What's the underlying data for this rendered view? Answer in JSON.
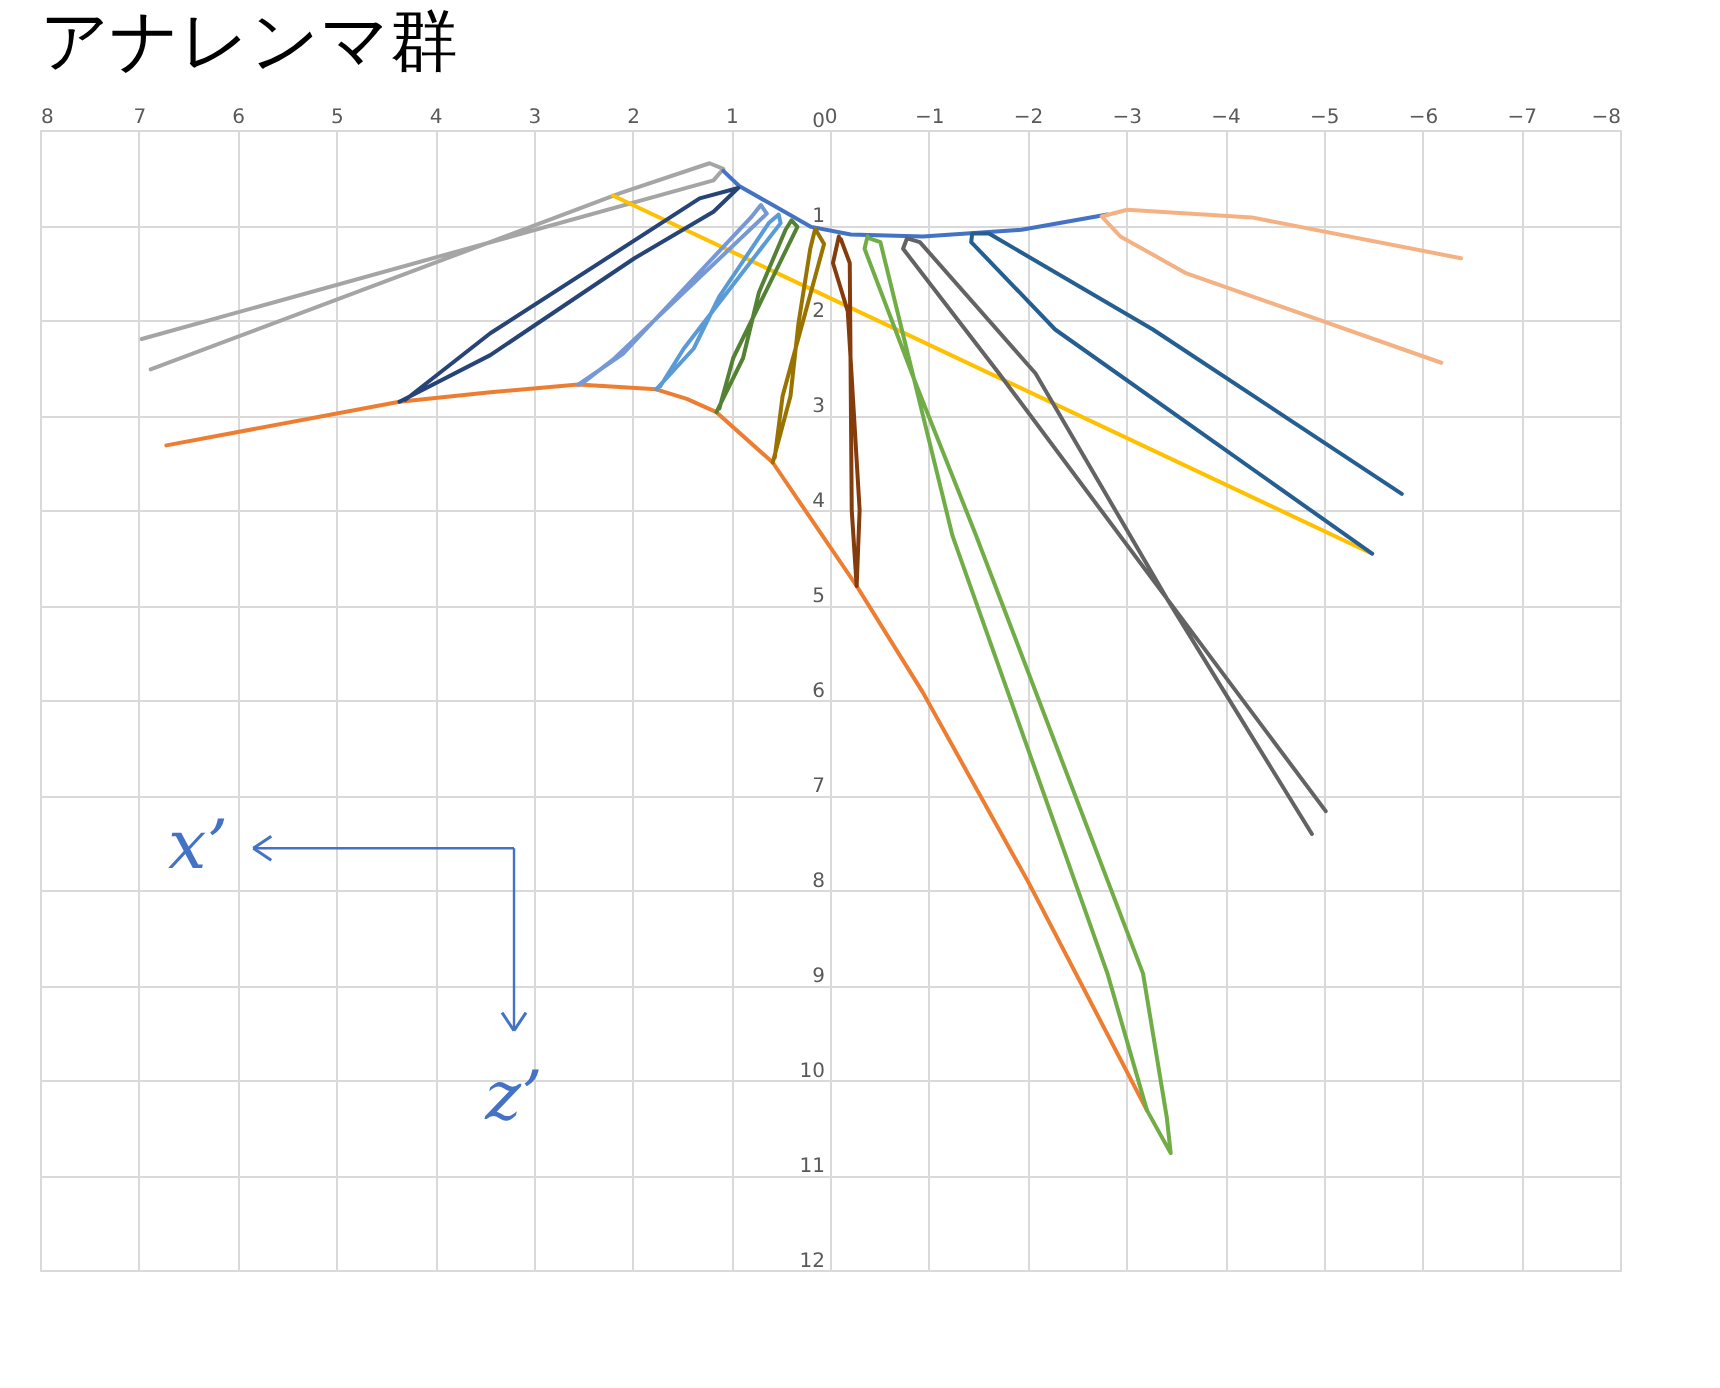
{
  "chart_data": {
    "type": "line",
    "title": "アナレンマ群",
    "xlim": [
      8,
      -8
    ],
    "xticks": [
      8,
      7,
      6,
      5,
      4,
      3,
      2,
      1,
      0,
      -1,
      -2,
      -3,
      -4,
      -5,
      -6,
      -7,
      -8
    ],
    "ylim": [
      12,
      0
    ],
    "yticks": [
      0,
      1,
      2,
      3,
      4,
      5,
      6,
      7,
      8,
      9,
      10,
      11,
      12
    ],
    "grid": true,
    "line_style": "solid",
    "annotations": [
      "x’",
      "z’"
    ],
    "series": [
      {
        "color": "#a5a5a5",
        "x": [
          6.97,
          1.18,
          1.08,
          1.22,
          2.11,
          6.88
        ],
        "values": [
          2.2,
          0.53,
          0.41,
          0.35,
          0.66,
          2.52
        ]
      },
      {
        "color": "#4472c4",
        "x": [
          1.08,
          0.92,
          0.58,
          0.19,
          -0.21,
          -0.94,
          -1.94,
          -2.81
        ],
        "values": [
          0.43,
          0.59,
          0.79,
          1.02,
          1.1,
          1.12,
          1.05,
          0.89
        ]
      },
      {
        "color": "#ffc000",
        "x": [
          2.2,
          -5.49
        ],
        "values": [
          0.69,
          4.46
        ]
      },
      {
        "color": "#ed7d31",
        "x": [
          6.72,
          4.36,
          3.44,
          2.55,
          1.76,
          1.45,
          1.15,
          0.58,
          -0.27,
          -0.94,
          -2.01,
          -3.21
        ],
        "values": [
          3.32,
          2.86,
          2.76,
          2.68,
          2.73,
          2.83,
          2.97,
          3.5,
          4.8,
          5.92,
          7.92,
          10.32
        ]
      },
      {
        "color": "#264478",
        "x": [
          4.36,
          3.44,
          1.98,
          1.18,
          0.93,
          1.32,
          3.44,
          4.3
        ],
        "values": [
          2.86,
          2.37,
          1.35,
          0.86,
          0.61,
          0.72,
          2.14,
          2.84
        ]
      },
      {
        "color": "#7698d4",
        "x": [
          2.55,
          2.1,
          1.55,
          0.8,
          0.7,
          0.64,
          2.2,
          2.5
        ],
        "values": [
          2.68,
          2.36,
          1.75,
          0.92,
          0.79,
          0.88,
          2.42,
          2.66
        ]
      },
      {
        "color": "#5b9bd5",
        "x": [
          1.76,
          1.38,
          1.12,
          0.62,
          0.52,
          0.5,
          1.48,
          1.72
        ],
        "values": [
          2.73,
          2.3,
          1.75,
          0.98,
          0.89,
          0.98,
          2.3,
          2.7
        ]
      },
      {
        "color": "#548235",
        "x": [
          1.15,
          0.88,
          0.72,
          0.45,
          0.39,
          0.33,
          0.98,
          1.12
        ],
        "values": [
          2.97,
          2.4,
          1.71,
          1.05,
          0.95,
          1.02,
          2.4,
          2.93
        ]
      },
      {
        "color": "#997300",
        "x": [
          0.58,
          0.4,
          0.32,
          0.2,
          0.15,
          0.06,
          0.48,
          0.56
        ],
        "values": [
          3.5,
          2.8,
          2.04,
          1.25,
          1.04,
          1.2,
          2.8,
          3.45
        ]
      },
      {
        "color": "#843c0c",
        "x": [
          -0.09,
          -0.03,
          -0.18,
          -0.3,
          -0.27,
          -0.22,
          -0.2,
          -0.11
        ],
        "values": [
          1.12,
          1.4,
          1.91,
          4.0,
          4.8,
          4.0,
          1.4,
          1.15
        ]
      },
      {
        "color": "#70ad47",
        "x": [
          -0.38,
          -0.35,
          -0.88,
          -1.48,
          -3.17,
          -3.41,
          -3.45,
          -3.21,
          -2.81,
          -1.24,
          -0.51,
          -0.4
        ],
        "values": [
          1.12,
          1.25,
          2.7,
          4.27,
          8.88,
          10.39,
          10.77,
          10.32,
          8.88,
          4.27,
          1.18,
          1.14
        ]
      },
      {
        "color": "#636363",
        "x": [
          -5.02,
          -3.41,
          -1.71,
          -0.74,
          -0.78,
          -0.91,
          -2.08,
          -3.41,
          -4.88
        ],
        "values": [
          7.17,
          4.93,
          2.56,
          1.25,
          1.14,
          1.18,
          2.56,
          4.93,
          7.41
        ]
      },
      {
        "color": "#255e91",
        "x": [
          -5.49,
          -2.28,
          -1.43,
          -1.44,
          -1.61,
          -3.27,
          -5.79
        ],
        "values": [
          4.46,
          2.1,
          1.18,
          1.09,
          1.09,
          2.1,
          3.83
        ]
      },
      {
        "color": "#f4b183",
        "x": [
          -6.39,
          -4.27,
          -3.01,
          -2.75,
          -2.94,
          -3.61,
          -6.19
        ],
        "values": [
          1.35,
          0.92,
          0.84,
          0.91,
          1.12,
          1.51,
          2.45
        ]
      }
    ]
  }
}
